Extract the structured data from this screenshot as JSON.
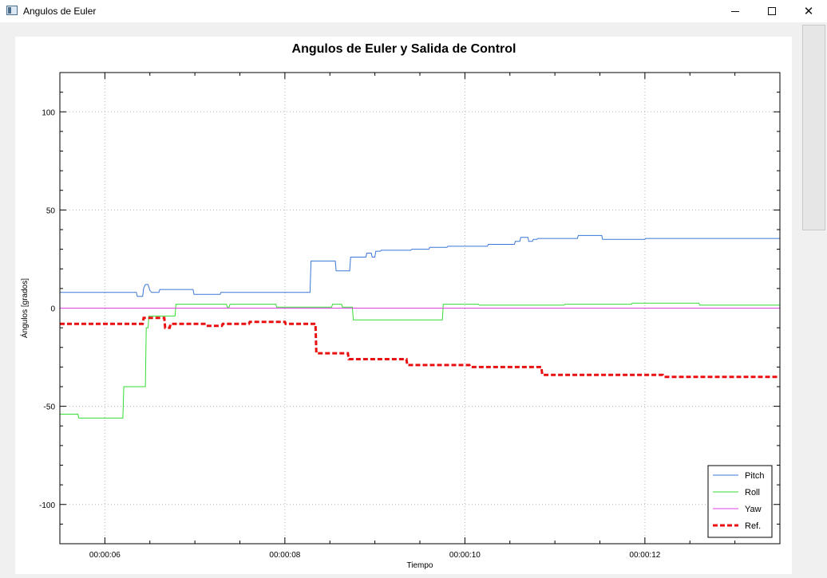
{
  "window": {
    "title": "Angulos de Euler",
    "minimize_icon": "minimize-icon",
    "maximize_icon": "maximize-icon",
    "close_icon": "close-icon",
    "close_glyph": "✕"
  },
  "chart_data": {
    "type": "line",
    "title": "Angulos de Euler y Salida de Control",
    "xlabel": "Tiempo",
    "ylabel": "Ángulos [grados]",
    "xlim": [
      5.5,
      13.5
    ],
    "ylim": [
      -120,
      120
    ],
    "x_tick_values": [
      6,
      8,
      10,
      12
    ],
    "x_tick_labels": [
      "00:00:06",
      "00:00:08",
      "00:00:10",
      "00:00:12"
    ],
    "y_tick_values": [
      100,
      50,
      0,
      -50,
      -100
    ],
    "y_tick_labels": [
      "100",
      "50",
      "0",
      "-50",
      "-100"
    ],
    "grid": true,
    "legend_position": "bottom-right",
    "series": [
      {
        "name": "Pitch",
        "color": "#3a76d6",
        "style": "solid",
        "x": [
          5.5,
          6.35,
          6.36,
          6.42,
          6.43,
          6.45,
          6.48,
          6.5,
          6.52,
          6.6,
          6.61,
          6.98,
          6.99,
          7.28,
          7.29,
          8.28,
          8.29,
          8.56,
          8.57,
          8.72,
          8.73,
          8.9,
          8.91,
          8.96,
          8.97,
          9.0,
          9.01,
          9.06,
          9.07,
          9.4,
          9.41,
          9.6,
          9.61,
          9.8,
          9.81,
          10.25,
          10.26,
          10.55,
          10.56,
          10.61,
          10.62,
          10.7,
          10.71,
          10.75,
          10.76,
          10.8,
          10.81,
          11.25,
          11.26,
          11.52,
          11.53,
          12.0,
          12.01,
          13.5
        ],
        "y": [
          8,
          8,
          6,
          6,
          10,
          12,
          12,
          9,
          8,
          8,
          9.5,
          9.5,
          7,
          7,
          8,
          8,
          24,
          24,
          19,
          19,
          26,
          26,
          28,
          28,
          26,
          26,
          29,
          29,
          29.5,
          29.5,
          30,
          30,
          31,
          31,
          31.5,
          31.5,
          32.5,
          32.5,
          34,
          34,
          36,
          36,
          34,
          34,
          35,
          35,
          35.5,
          35.5,
          37,
          37,
          35,
          35,
          35.5,
          35.5
        ]
      },
      {
        "name": "Roll",
        "color": "#33dd33",
        "style": "solid",
        "x": [
          5.5,
          5.7,
          5.71,
          6.2,
          6.21,
          6.45,
          6.46,
          6.48,
          6.49,
          6.78,
          6.79,
          7.35,
          7.36,
          7.38,
          7.39,
          7.9,
          7.91,
          8.52,
          8.53,
          8.63,
          8.64,
          8.75,
          8.76,
          9.75,
          9.76,
          10.15,
          10.16,
          11.1,
          11.11,
          11.85,
          11.86,
          12.6,
          12.61,
          13.5
        ],
        "y": [
          -54,
          -54,
          -56,
          -56,
          -40,
          -40,
          -10,
          -10,
          -4,
          -4,
          2,
          2,
          0.5,
          0.5,
          2,
          2,
          0.5,
          0.5,
          2,
          2,
          0.5,
          0.5,
          -6,
          -6,
          2,
          2,
          1.5,
          1.5,
          2,
          2,
          2.5,
          2.5,
          1.5,
          1.5
        ]
      },
      {
        "name": "Yaw",
        "color": "#e040e0",
        "style": "solid",
        "x": [
          5.5,
          13.5
        ],
        "y": [
          0,
          0
        ]
      },
      {
        "name": "Ref.",
        "color": "#e81010",
        "style": "dashed",
        "x": [
          5.5,
          6.42,
          6.43,
          6.66,
          6.67,
          6.72,
          6.73,
          7.12,
          7.13,
          7.3,
          7.31,
          7.6,
          7.61,
          8.0,
          8.01,
          8.34,
          8.35,
          8.7,
          8.71,
          9.35,
          9.36,
          10.05,
          10.06,
          10.85,
          10.86,
          12.2,
          12.21,
          13.5
        ],
        "y": [
          -8,
          -8,
          -5,
          -5,
          -10,
          -10,
          -8,
          -8,
          -9,
          -9,
          -8,
          -8,
          -7,
          -7,
          -8,
          -8,
          -23,
          -23,
          -26,
          -26,
          -29,
          -29,
          -30,
          -30,
          -34,
          -34,
          -35,
          -35
        ]
      }
    ]
  }
}
